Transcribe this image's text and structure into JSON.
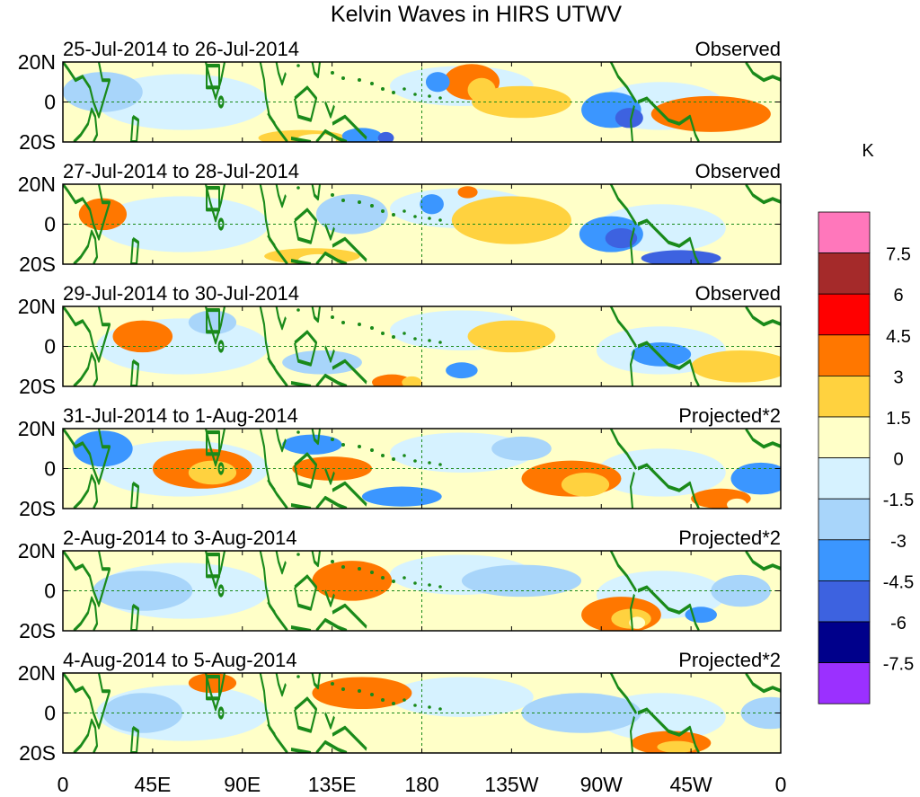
{
  "title": "Kelvin Waves in HIRS UTWV",
  "panels": [
    {
      "date_range": "25-Jul-2014 to 26-Jul-2014",
      "type_label": "Observed"
    },
    {
      "date_range": "27-Jul-2014 to 28-Jul-2014",
      "type_label": "Observed"
    },
    {
      "date_range": "29-Jul-2014 to 30-Jul-2014",
      "type_label": "Observed"
    },
    {
      "date_range": "31-Jul-2014 to 1-Aug-2014",
      "type_label": "Projected*2"
    },
    {
      "date_range": "2-Aug-2014 to 3-Aug-2014",
      "type_label": "Projected*2"
    },
    {
      "date_range": "4-Aug-2014 to 5-Aug-2014",
      "type_label": "Projected*2"
    }
  ],
  "lat_labels": [
    "20N",
    "0",
    "20S"
  ],
  "lon_labels": [
    "0",
    "45E",
    "90E",
    "135E",
    "180",
    "135W",
    "90W",
    "45W",
    "0"
  ],
  "colorbar": {
    "unit": "K",
    "labels": [
      "7.5",
      "6",
      "4.5",
      "3",
      "1.5",
      "0",
      "-1.5",
      "-3",
      "-4.5",
      "-6",
      "-7.5"
    ],
    "colors": [
      "#ff77bb",
      "#a52a2a",
      "#ff0000",
      "#ff7700",
      "#ffd23f",
      "#ffffc8",
      "#d6f2ff",
      "#a8d5fa",
      "#3b96ff",
      "#3d62e0",
      "#00008b",
      "#9b30ff"
    ]
  },
  "panel_blobs": [
    [
      {
        "lon": 205,
        "lat": 10,
        "rx": 14,
        "ry": 9,
        "level": 3
      },
      {
        "lon": 210,
        "lat": 6,
        "rx": 7,
        "ry": 6,
        "level": 4
      },
      {
        "lon": 120,
        "lat": -18,
        "rx": 22,
        "ry": 4,
        "level": 4
      },
      {
        "lon": 127,
        "lat": -19,
        "rx": 10,
        "ry": 3,
        "level": 5
      },
      {
        "lon": 356,
        "lat": -16,
        "rx": 4,
        "ry": 4,
        "level": 5
      },
      {
        "lon": 275,
        "lat": -4,
        "rx": 15,
        "ry": 9,
        "level": 8
      },
      {
        "lon": 284,
        "lat": -8,
        "rx": 7,
        "ry": 5,
        "level": 9
      },
      {
        "lon": 150,
        "lat": -17,
        "rx": 10,
        "ry": 4,
        "level": 8
      },
      {
        "lon": 162,
        "lat": -18,
        "rx": 4,
        "ry": 3,
        "level": 9
      },
      {
        "lon": 188,
        "lat": 10,
        "rx": 6,
        "ry": 5,
        "level": 8
      },
      {
        "lon": 325,
        "lat": -6,
        "rx": 30,
        "ry": 9,
        "level": 3
      },
      {
        "lon": 20,
        "lat": 5,
        "rx": 20,
        "ry": 10,
        "level": 7
      },
      {
        "lon": 230,
        "lat": 0,
        "rx": 25,
        "ry": 8,
        "level": 4
      }
    ],
    [
      {
        "lon": 275,
        "lat": -5,
        "rx": 16,
        "ry": 9,
        "level": 8
      },
      {
        "lon": 280,
        "lat": -7,
        "rx": 8,
        "ry": 5,
        "level": 9
      },
      {
        "lon": 125,
        "lat": -16,
        "rx": 24,
        "ry": 4,
        "level": 4
      },
      {
        "lon": 128,
        "lat": -18,
        "rx": 10,
        "ry": 3,
        "level": 5
      },
      {
        "lon": 203,
        "lat": 16,
        "rx": 5,
        "ry": 3,
        "level": 3
      },
      {
        "lon": 310,
        "lat": -17,
        "rx": 20,
        "ry": 4,
        "level": 9
      },
      {
        "lon": 225,
        "lat": 2,
        "rx": 30,
        "ry": 12,
        "level": 4
      },
      {
        "lon": 20,
        "lat": 5,
        "rx": 12,
        "ry": 8,
        "level": 3
      },
      {
        "lon": 145,
        "lat": 5,
        "rx": 18,
        "ry": 10,
        "level": 7
      },
      {
        "lon": 185,
        "lat": 10,
        "rx": 6,
        "ry": 5,
        "level": 8
      }
    ],
    [
      {
        "lon": 165,
        "lat": -18,
        "rx": 10,
        "ry": 4,
        "level": 3
      },
      {
        "lon": 175,
        "lat": -18,
        "rx": 5,
        "ry": 3,
        "level": 4
      },
      {
        "lon": 200,
        "lat": -12,
        "rx": 8,
        "ry": 4,
        "level": 8
      },
      {
        "lon": 300,
        "lat": -4,
        "rx": 15,
        "ry": 6,
        "level": 8
      },
      {
        "lon": 75,
        "lat": 12,
        "rx": 12,
        "ry": 6,
        "level": 7
      },
      {
        "lon": 225,
        "lat": 5,
        "rx": 22,
        "ry": 8,
        "level": 4
      },
      {
        "lon": 40,
        "lat": 5,
        "rx": 15,
        "ry": 8,
        "level": 3
      },
      {
        "lon": 340,
        "lat": -10,
        "rx": 25,
        "ry": 8,
        "level": 4
      },
      {
        "lon": 130,
        "lat": -8,
        "rx": 20,
        "ry": 6,
        "level": 7
      }
    ],
    [
      {
        "lon": 70,
        "lat": 0,
        "rx": 25,
        "ry": 10,
        "level": 3
      },
      {
        "lon": 75,
        "lat": -2,
        "rx": 12,
        "ry": 6,
        "level": 4
      },
      {
        "lon": 255,
        "lat": -5,
        "rx": 25,
        "ry": 9,
        "level": 3
      },
      {
        "lon": 262,
        "lat": -8,
        "rx": 12,
        "ry": 6,
        "level": 4
      },
      {
        "lon": 330,
        "lat": -15,
        "rx": 15,
        "ry": 5,
        "level": 3
      },
      {
        "lon": 338,
        "lat": -18,
        "rx": 5,
        "ry": 3,
        "level": 5
      },
      {
        "lon": 20,
        "lat": 10,
        "rx": 15,
        "ry": 9,
        "level": 8
      },
      {
        "lon": 350,
        "lat": -5,
        "rx": 15,
        "ry": 8,
        "level": 8
      },
      {
        "lon": 170,
        "lat": -14,
        "rx": 20,
        "ry": 5,
        "level": 8
      },
      {
        "lon": 125,
        "lat": 12,
        "rx": 15,
        "ry": 5,
        "level": 8
      },
      {
        "lon": 135,
        "lat": 0,
        "rx": 20,
        "ry": 6,
        "level": 3
      },
      {
        "lon": 230,
        "lat": 10,
        "rx": 15,
        "ry": 6,
        "level": 7
      }
    ],
    [
      {
        "lon": 280,
        "lat": -12,
        "rx": 20,
        "ry": 9,
        "level": 3
      },
      {
        "lon": 285,
        "lat": -14,
        "rx": 10,
        "ry": 5,
        "level": 4
      },
      {
        "lon": 288,
        "lat": -16,
        "rx": 4,
        "ry": 3,
        "level": 5
      },
      {
        "lon": 145,
        "lat": 5,
        "rx": 20,
        "ry": 10,
        "level": 3
      },
      {
        "lon": 230,
        "lat": 5,
        "rx": 30,
        "ry": 8,
        "level": 7
      },
      {
        "lon": 40,
        "lat": 0,
        "rx": 25,
        "ry": 10,
        "level": 7
      },
      {
        "lon": 340,
        "lat": 0,
        "rx": 15,
        "ry": 8,
        "level": 7
      },
      {
        "lon": 320,
        "lat": -12,
        "rx": 8,
        "ry": 4,
        "level": 8
      }
    ],
    [
      {
        "lon": 305,
        "lat": -15,
        "rx": 20,
        "ry": 6,
        "level": 3
      },
      {
        "lon": 308,
        "lat": -17,
        "rx": 10,
        "ry": 3,
        "level": 4
      },
      {
        "lon": 150,
        "lat": 10,
        "rx": 25,
        "ry": 8,
        "level": 3
      },
      {
        "lon": 260,
        "lat": 0,
        "rx": 30,
        "ry": 10,
        "level": 7
      },
      {
        "lon": 40,
        "lat": 0,
        "rx": 20,
        "ry": 10,
        "level": 7
      },
      {
        "lon": 355,
        "lat": 0,
        "rx": 15,
        "ry": 8,
        "level": 7
      },
      {
        "lon": 75,
        "lat": 15,
        "rx": 12,
        "ry": 5,
        "level": 3
      }
    ]
  ]
}
